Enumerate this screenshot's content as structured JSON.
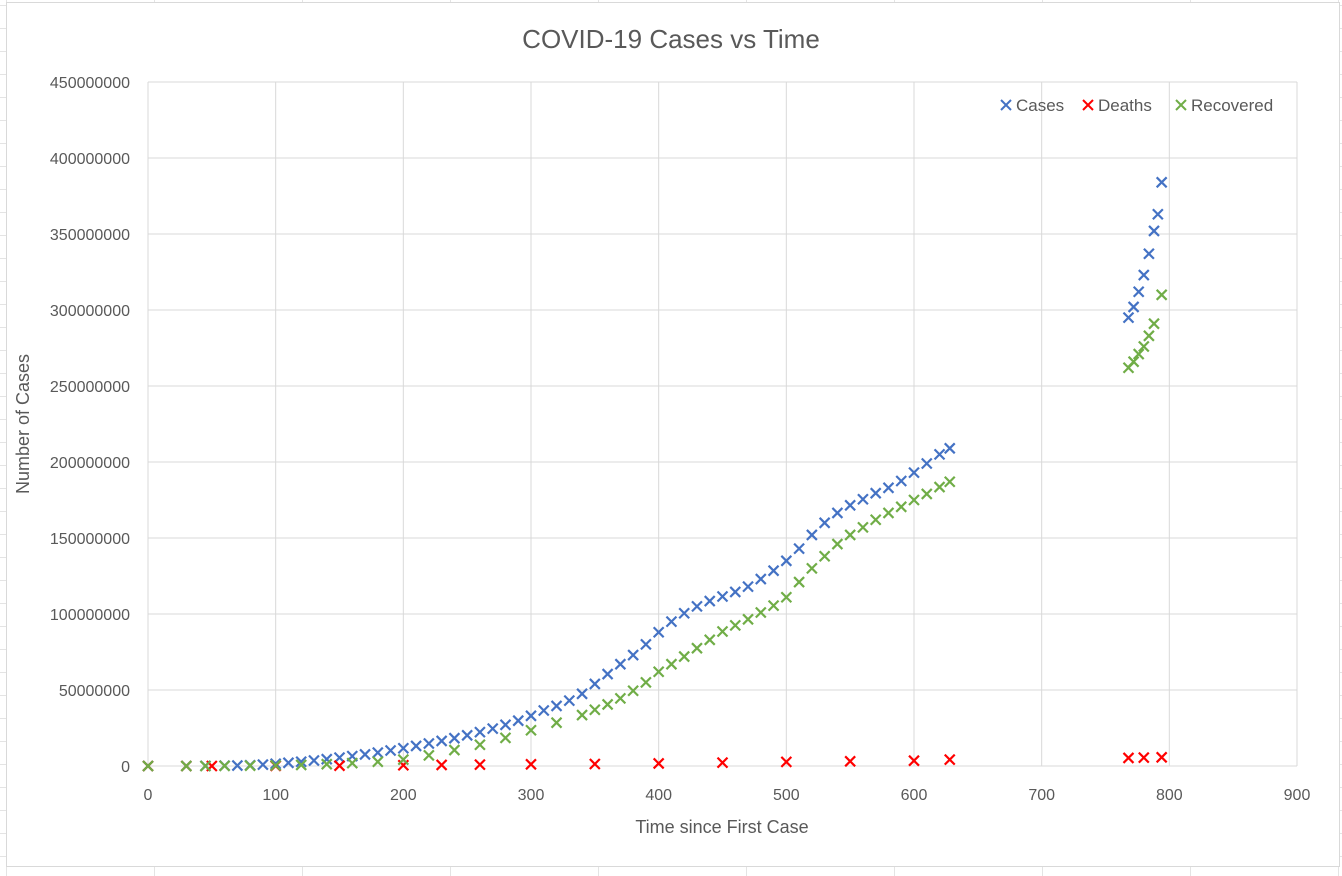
{
  "chart_data": {
    "type": "scatter",
    "title": "COVID-19 Cases vs Time",
    "xlabel": "Time since First Case",
    "ylabel": "Number of Cases",
    "xlim": [
      0,
      900
    ],
    "ylim": [
      0,
      450000000
    ],
    "x_ticks": [
      0,
      100,
      200,
      300,
      400,
      500,
      600,
      700,
      800,
      900
    ],
    "y_ticks": [
      0,
      50000000,
      100000000,
      150000000,
      200000000,
      250000000,
      300000000,
      350000000,
      400000000,
      450000000
    ],
    "x_tick_labels": [
      "0",
      "100",
      "200",
      "300",
      "400",
      "500",
      "600",
      "700",
      "800",
      "900"
    ],
    "y_tick_labels": [
      "0",
      "50000000",
      "100000000",
      "150000000",
      "200000000",
      "250000000",
      "300000000",
      "350000000",
      "400000000",
      "450000000"
    ],
    "grid": true,
    "legend_position": "top-right",
    "marker": "x",
    "series": [
      {
        "name": "Cases",
        "color": "#4472c4",
        "points": [
          [
            0,
            0
          ],
          [
            30,
            0
          ],
          [
            45,
            100000
          ],
          [
            60,
            200000
          ],
          [
            70,
            300000
          ],
          [
            80,
            500000
          ],
          [
            90,
            900000
          ],
          [
            100,
            1500000
          ],
          [
            110,
            2100000
          ],
          [
            120,
            2800000
          ],
          [
            130,
            3600000
          ],
          [
            140,
            4500000
          ],
          [
            150,
            5500000
          ],
          [
            160,
            6500000
          ],
          [
            170,
            7600000
          ],
          [
            180,
            8800000
          ],
          [
            190,
            10200000
          ],
          [
            200,
            11700000
          ],
          [
            210,
            13200000
          ],
          [
            220,
            14800000
          ],
          [
            230,
            16500000
          ],
          [
            240,
            18300000
          ],
          [
            250,
            20200000
          ],
          [
            260,
            22300000
          ],
          [
            270,
            24600000
          ],
          [
            280,
            27100000
          ],
          [
            290,
            29800000
          ],
          [
            300,
            33000000
          ],
          [
            310,
            36500000
          ],
          [
            320,
            39500000
          ],
          [
            330,
            43000000
          ],
          [
            340,
            47500000
          ],
          [
            350,
            54000000
          ],
          [
            360,
            60500000
          ],
          [
            370,
            67000000
          ],
          [
            380,
            73000000
          ],
          [
            390,
            80000000
          ],
          [
            400,
            88000000
          ],
          [
            410,
            95000000
          ],
          [
            420,
            100500000
          ],
          [
            430,
            105000000
          ],
          [
            440,
            108500000
          ],
          [
            450,
            111500000
          ],
          [
            460,
            114500000
          ],
          [
            470,
            118000000
          ],
          [
            480,
            123000000
          ],
          [
            490,
            128500000
          ],
          [
            500,
            135000000
          ],
          [
            510,
            143000000
          ],
          [
            520,
            152000000
          ],
          [
            530,
            160000000
          ],
          [
            540,
            166500000
          ],
          [
            550,
            171500000
          ],
          [
            560,
            175500000
          ],
          [
            570,
            179500000
          ],
          [
            580,
            183000000
          ],
          [
            590,
            187500000
          ],
          [
            600,
            193000000
          ],
          [
            610,
            199000000
          ],
          [
            620,
            205000000
          ],
          [
            628,
            209000000
          ],
          [
            768,
            295000000
          ],
          [
            772,
            302000000
          ],
          [
            776,
            312000000
          ],
          [
            780,
            323000000
          ],
          [
            784,
            337000000
          ],
          [
            788,
            352000000
          ],
          [
            791,
            363000000
          ],
          [
            794,
            384000000
          ]
        ]
      },
      {
        "name": "Deaths",
        "color": "#ff0000",
        "points": [
          [
            0,
            0
          ],
          [
            30,
            0
          ],
          [
            50,
            0
          ],
          [
            100,
            100000
          ],
          [
            150,
            200000
          ],
          [
            200,
            500000
          ],
          [
            230,
            700000
          ],
          [
            260,
            900000
          ],
          [
            300,
            1100000
          ],
          [
            350,
            1300000
          ],
          [
            400,
            1700000
          ],
          [
            450,
            2200000
          ],
          [
            500,
            2700000
          ],
          [
            550,
            3100000
          ],
          [
            600,
            3500000
          ],
          [
            628,
            4200000
          ],
          [
            768,
            5300000
          ],
          [
            780,
            5500000
          ],
          [
            794,
            5700000
          ]
        ]
      },
      {
        "name": "Recovered",
        "color": "#70ad47",
        "points": [
          [
            0,
            0
          ],
          [
            30,
            0
          ],
          [
            45,
            0
          ],
          [
            60,
            100000
          ],
          [
            80,
            200000
          ],
          [
            100,
            400000
          ],
          [
            120,
            700000
          ],
          [
            140,
            1200000
          ],
          [
            160,
            1900000
          ],
          [
            180,
            2800000
          ],
          [
            200,
            4200000
          ],
          [
            220,
            7000000
          ],
          [
            240,
            10500000
          ],
          [
            260,
            14000000
          ],
          [
            280,
            18500000
          ],
          [
            300,
            23500000
          ],
          [
            320,
            28500000
          ],
          [
            340,
            33500000
          ],
          [
            350,
            37000000
          ],
          [
            360,
            40500000
          ],
          [
            370,
            44500000
          ],
          [
            380,
            49500000
          ],
          [
            390,
            55000000
          ],
          [
            400,
            62000000
          ],
          [
            410,
            67000000
          ],
          [
            420,
            72000000
          ],
          [
            430,
            77500000
          ],
          [
            440,
            83000000
          ],
          [
            450,
            88500000
          ],
          [
            460,
            92500000
          ],
          [
            470,
            96500000
          ],
          [
            480,
            101000000
          ],
          [
            490,
            105500000
          ],
          [
            500,
            111000000
          ],
          [
            510,
            121000000
          ],
          [
            520,
            130000000
          ],
          [
            530,
            138000000
          ],
          [
            540,
            146000000
          ],
          [
            550,
            152000000
          ],
          [
            560,
            157000000
          ],
          [
            570,
            162000000
          ],
          [
            580,
            166500000
          ],
          [
            590,
            170500000
          ],
          [
            600,
            175000000
          ],
          [
            610,
            179000000
          ],
          [
            620,
            183500000
          ],
          [
            628,
            187000000
          ],
          [
            768,
            262000000
          ],
          [
            772,
            266000000
          ],
          [
            776,
            271000000
          ],
          [
            780,
            276000000
          ],
          [
            784,
            283000000
          ],
          [
            788,
            291000000
          ],
          [
            794,
            310000000
          ]
        ]
      }
    ]
  }
}
